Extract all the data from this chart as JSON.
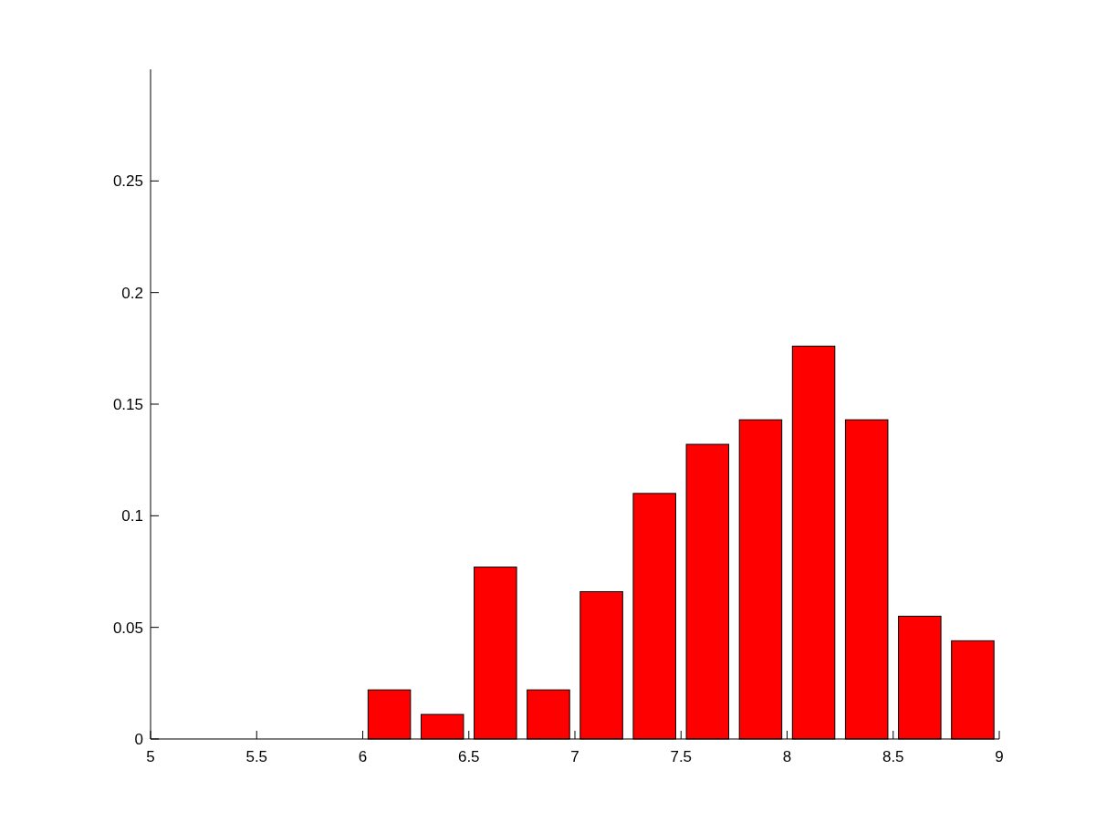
{
  "chart_data": {
    "type": "bar",
    "x": [
      6.125,
      6.375,
      6.625,
      6.875,
      7.125,
      7.375,
      7.625,
      7.875,
      8.125,
      8.375,
      8.625,
      8.875
    ],
    "values": [
      0.022,
      0.011,
      0.077,
      0.022,
      0.066,
      0.11,
      0.132,
      0.143,
      0.176,
      0.143,
      0.055,
      0.044
    ],
    "color": "#ff0000",
    "xlim": [
      5,
      9
    ],
    "xticks": [
      5,
      5.5,
      6,
      6.5,
      7,
      7.5,
      8,
      8.5,
      9
    ],
    "ylim": [
      0,
      0.3
    ],
    "yticks": [
      0,
      0.05,
      0.1,
      0.15,
      0.2,
      0.25
    ],
    "grid": false
  }
}
